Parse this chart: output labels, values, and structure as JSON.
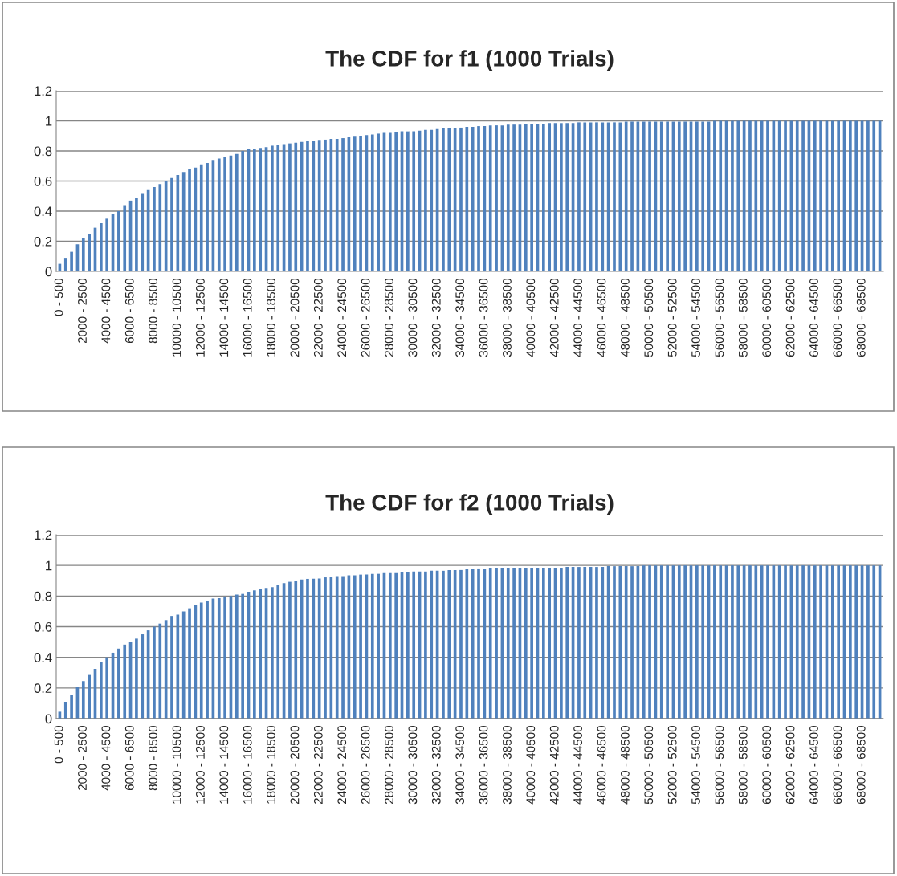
{
  "chart_data": [
    {
      "type": "bar",
      "title": "The CDF for f1 (1000 Trials)",
      "color": "#4f81bd",
      "ylim": [
        0,
        1.2
      ],
      "yticks": [
        0,
        0.2,
        0.4,
        0.6,
        0.8,
        1,
        1.2
      ],
      "grid": "y",
      "legend": false,
      "categories": [
        "0 - 500",
        null,
        null,
        null,
        "2000 - 2500",
        null,
        null,
        null,
        "4000 - 4500",
        null,
        null,
        null,
        "6000 - 6500",
        null,
        null,
        null,
        "8000 - 8500",
        null,
        null,
        null,
        "10000 - 10500",
        null,
        null,
        null,
        "12000 - 12500",
        null,
        null,
        null,
        "14000 - 14500",
        null,
        null,
        null,
        "16000 - 16500",
        null,
        null,
        null,
        "18000 - 18500",
        null,
        null,
        null,
        "20000 - 20500",
        null,
        null,
        null,
        "22000 - 22500",
        null,
        null,
        null,
        "24000 - 24500",
        null,
        null,
        null,
        "26000 - 26500",
        null,
        null,
        null,
        "28000 - 28500",
        null,
        null,
        null,
        "30000 - 30500",
        null,
        null,
        null,
        "32000 - 32500",
        null,
        null,
        null,
        "34000 - 34500",
        null,
        null,
        null,
        "36000 - 36500",
        null,
        null,
        null,
        "38000 - 38500",
        null,
        null,
        null,
        "40000 - 40500",
        null,
        null,
        null,
        "42000 - 42500",
        null,
        null,
        null,
        "44000 - 44500",
        null,
        null,
        null,
        "46000 - 46500",
        null,
        null,
        null,
        "48000 - 48500",
        null,
        null,
        null,
        "50000 - 50500",
        null,
        null,
        null,
        "52000 - 52500",
        null,
        null,
        null,
        "54000 - 54500",
        null,
        null,
        null,
        "56000 - 56500",
        null,
        null,
        null,
        "58000 - 58500",
        null,
        null,
        null,
        "60000 - 60500",
        null,
        null,
        null,
        "62000 - 62500",
        null,
        null,
        null,
        "64000 - 64500",
        null,
        null,
        null,
        "66000 - 66500",
        null,
        null,
        null,
        "68000 - 68500",
        null,
        null,
        null
      ],
      "values": [
        0.05,
        0.09,
        0.13,
        0.18,
        0.22,
        0.25,
        0.29,
        0.32,
        0.35,
        0.38,
        0.4,
        0.44,
        0.47,
        0.49,
        0.52,
        0.54,
        0.56,
        0.58,
        0.6,
        0.62,
        0.64,
        0.66,
        0.68,
        0.69,
        0.71,
        0.72,
        0.74,
        0.75,
        0.76,
        0.77,
        0.78,
        0.8,
        0.81,
        0.815,
        0.82,
        0.825,
        0.835,
        0.84,
        0.845,
        0.85,
        0.855,
        0.86,
        0.865,
        0.87,
        0.873,
        0.875,
        0.88,
        0.88,
        0.885,
        0.89,
        0.895,
        0.9,
        0.905,
        0.91,
        0.915,
        0.92,
        0.92,
        0.925,
        0.93,
        0.93,
        0.93,
        0.935,
        0.94,
        0.94,
        0.945,
        0.95,
        0.95,
        0.955,
        0.955,
        0.96,
        0.96,
        0.965,
        0.965,
        0.97,
        0.97,
        0.97,
        0.975,
        0.975,
        0.975,
        0.98,
        0.98,
        0.98,
        0.98,
        0.985,
        0.985,
        0.985,
        0.985,
        0.985,
        0.99,
        0.99,
        0.99,
        0.99,
        0.99,
        0.99,
        0.99,
        0.99,
        0.995,
        0.995,
        0.995,
        0.995,
        0.995,
        0.995,
        0.995,
        0.995,
        0.995,
        0.995,
        0.995,
        0.995,
        0.995,
        0.995,
        0.995,
        1,
        1,
        1,
        1,
        1,
        1,
        1,
        1,
        1,
        1,
        1,
        1,
        1,
        1,
        1,
        1,
        1,
        1,
        1,
        1,
        1,
        1,
        1,
        1,
        1,
        1,
        1,
        1,
        1
      ]
    },
    {
      "type": "bar",
      "title": "The CDF for f2 (1000 Trials)",
      "color": "#4f81bd",
      "ylim": [
        0,
        1.2
      ],
      "yticks": [
        0,
        0.2,
        0.4,
        0.6,
        0.8,
        1,
        1.2
      ],
      "grid": "y",
      "legend": false,
      "categories": [
        "0 - 500",
        null,
        null,
        null,
        "2000 - 2500",
        null,
        null,
        null,
        "4000 - 4500",
        null,
        null,
        null,
        "6000 - 6500",
        null,
        null,
        null,
        "8000 - 8500",
        null,
        null,
        null,
        "10000 - 10500",
        null,
        null,
        null,
        "12000 - 12500",
        null,
        null,
        null,
        "14000 - 14500",
        null,
        null,
        null,
        "16000 - 16500",
        null,
        null,
        null,
        "18000 - 18500",
        null,
        null,
        null,
        "20000 - 20500",
        null,
        null,
        null,
        "22000 - 22500",
        null,
        null,
        null,
        "24000 - 24500",
        null,
        null,
        null,
        "26000 - 26500",
        null,
        null,
        null,
        "28000 - 28500",
        null,
        null,
        null,
        "30000 - 30500",
        null,
        null,
        null,
        "32000 - 32500",
        null,
        null,
        null,
        "34000 - 34500",
        null,
        null,
        null,
        "36000 - 36500",
        null,
        null,
        null,
        "38000 - 38500",
        null,
        null,
        null,
        "40000 - 40500",
        null,
        null,
        null,
        "42000 - 42500",
        null,
        null,
        null,
        "44000 - 44500",
        null,
        null,
        null,
        "46000 - 46500",
        null,
        null,
        null,
        "48000 - 48500",
        null,
        null,
        null,
        "50000 - 50500",
        null,
        null,
        null,
        "52000 - 52500",
        null,
        null,
        null,
        "54000 - 54500",
        null,
        null,
        null,
        "56000 - 56500",
        null,
        null,
        null,
        "58000 - 58500",
        null,
        null,
        null,
        "60000 - 60500",
        null,
        null,
        null,
        "62000 - 62500",
        null,
        null,
        null,
        "64000 - 64500",
        null,
        null,
        null,
        "66000 - 66500",
        null,
        null,
        null,
        "68000 - 68500",
        null,
        null,
        null
      ],
      "values": [
        0.045,
        0.11,
        0.155,
        0.205,
        0.245,
        0.285,
        0.325,
        0.367,
        0.4,
        0.43,
        0.457,
        0.483,
        0.503,
        0.522,
        0.55,
        0.576,
        0.6,
        0.62,
        0.643,
        0.67,
        0.678,
        0.7,
        0.72,
        0.74,
        0.757,
        0.77,
        0.783,
        0.786,
        0.797,
        0.8,
        0.81,
        0.814,
        0.828,
        0.837,
        0.844,
        0.853,
        0.858,
        0.872,
        0.884,
        0.893,
        0.9,
        0.908,
        0.912,
        0.913,
        0.915,
        0.922,
        0.925,
        0.93,
        0.93,
        0.935,
        0.935,
        0.94,
        0.94,
        0.945,
        0.945,
        0.95,
        0.95,
        0.95,
        0.955,
        0.955,
        0.96,
        0.96,
        0.96,
        0.965,
        0.965,
        0.965,
        0.97,
        0.97,
        0.97,
        0.975,
        0.975,
        0.975,
        0.975,
        0.98,
        0.98,
        0.98,
        0.98,
        0.98,
        0.985,
        0.985,
        0.985,
        0.985,
        0.985,
        0.985,
        0.985,
        0.985,
        0.99,
        0.99,
        0.99,
        0.99,
        0.99,
        0.99,
        0.99,
        0.995,
        0.995,
        0.995,
        0.995,
        0.995,
        0.995,
        1,
        1,
        1,
        1,
        1,
        1,
        1,
        1,
        1,
        1,
        1,
        1,
        1,
        1,
        1,
        1,
        1,
        1,
        1,
        1,
        1,
        1,
        1,
        1,
        1,
        1,
        1,
        1,
        1,
        1,
        1,
        1,
        1,
        1,
        1,
        1,
        1,
        1,
        1,
        1,
        1
      ]
    }
  ]
}
